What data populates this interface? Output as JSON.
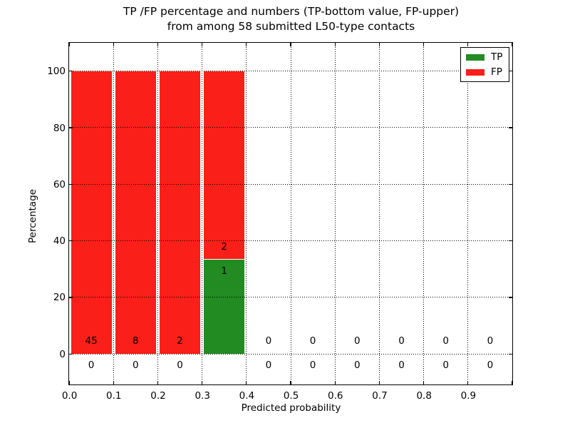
{
  "figure": {
    "title_line1": "TP /FP percentage and numbers (TP-bottom value, FP-upper)",
    "title_line2": "from among 58 submitted L50-type contacts",
    "xlabel": "Predicted probability",
    "ylabel": "Percentage"
  },
  "legend": {
    "items": [
      {
        "label": "TP",
        "color": "#228b22"
      },
      {
        "label": "FP",
        "color": "#fa1f18"
      }
    ]
  },
  "chart_data": {
    "type": "bar",
    "subtype": "stacked-percentage-histogram",
    "title": "TP /FP percentage and numbers (TP-bottom value, FP-upper)\nfrom among 58 submitted L50-type contacts",
    "xlabel": "Predicted probability",
    "ylabel": "Percentage",
    "xlim": [
      0.0,
      1.0
    ],
    "ylim": [
      -10.8,
      110.0
    ],
    "x_tick_values": [
      0.0,
      0.1,
      0.2,
      0.3,
      0.4,
      0.5,
      0.6,
      0.7,
      0.8,
      0.9,
      1.0
    ],
    "x_tick_labels": [
      "0.0",
      "0.1",
      "0.2",
      "0.3",
      "0.4",
      "0.5",
      "0.6",
      "0.7",
      "0.8",
      "0.9",
      ""
    ],
    "y_tick_values": [
      0,
      20,
      40,
      60,
      80,
      100
    ],
    "y_tick_labels": [
      "0",
      "20",
      "40",
      "60",
      "80",
      "100"
    ],
    "grid": "dotted, drawn above bars",
    "legend_position": "upper right",
    "total_contacts": 58,
    "bin_width": 0.1,
    "series": [
      {
        "name": "TP",
        "color": "#228b22"
      },
      {
        "name": "FP",
        "color": "#fa1f18"
      }
    ],
    "bins": [
      {
        "range": [
          0.0,
          0.1
        ],
        "tp_count": 0,
        "fp_count": 45,
        "tp_pct": 0,
        "fp_pct": 100
      },
      {
        "range": [
          0.1,
          0.2
        ],
        "tp_count": 0,
        "fp_count": 8,
        "tp_pct": 0,
        "fp_pct": 100
      },
      {
        "range": [
          0.2,
          0.3
        ],
        "tp_count": 0,
        "fp_count": 2,
        "tp_pct": 0,
        "fp_pct": 100
      },
      {
        "range": [
          0.3,
          0.4
        ],
        "tp_count": 1,
        "fp_count": 2,
        "tp_pct": 33.33,
        "fp_pct": 66.67
      },
      {
        "range": [
          0.4,
          0.5
        ],
        "tp_count": 0,
        "fp_count": 0,
        "tp_pct": 0,
        "fp_pct": 0
      },
      {
        "range": [
          0.5,
          0.6
        ],
        "tp_count": 0,
        "fp_count": 0,
        "tp_pct": 0,
        "fp_pct": 0
      },
      {
        "range": [
          0.6,
          0.7
        ],
        "tp_count": 0,
        "fp_count": 0,
        "tp_pct": 0,
        "fp_pct": 0
      },
      {
        "range": [
          0.7,
          0.8
        ],
        "tp_count": 0,
        "fp_count": 0,
        "tp_pct": 0,
        "fp_pct": 0
      },
      {
        "range": [
          0.8,
          0.9
        ],
        "tp_count": 0,
        "fp_count": 0,
        "tp_pct": 0,
        "fp_pct": 0
      },
      {
        "range": [
          0.9,
          1.0
        ],
        "tp_count": 0,
        "fp_count": 0,
        "tp_pct": 0,
        "fp_pct": 0
      }
    ]
  }
}
